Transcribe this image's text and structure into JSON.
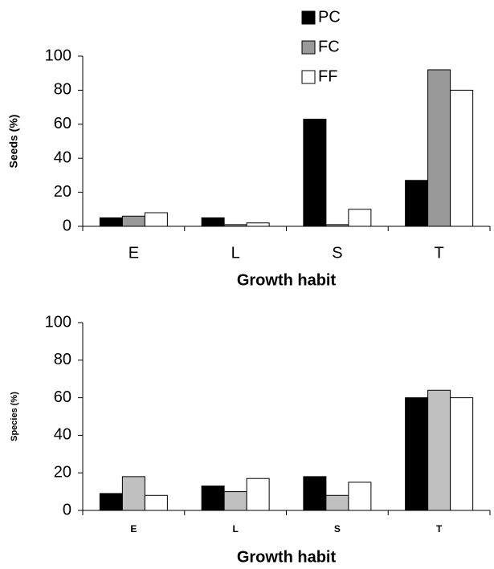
{
  "chart_data": [
    {
      "type": "bar",
      "y_label": "Seeds (%)",
      "x_label": "Growth habit",
      "categories": [
        "E",
        "L",
        "S",
        "T"
      ],
      "series": [
        {
          "name": "PC",
          "color": "#000000",
          "values": [
            5,
            5,
            63,
            27
          ]
        },
        {
          "name": "FC",
          "color": "#999999",
          "values": [
            6,
            1,
            1,
            92
          ]
        },
        {
          "name": "FF",
          "color": "#ffffff",
          "values": [
            8,
            2,
            10,
            80
          ]
        }
      ],
      "ylim": [
        0,
        100
      ],
      "yticks": [
        0,
        20,
        40,
        60,
        80,
        100
      ],
      "legend": "top-right"
    },
    {
      "type": "bar",
      "y_label": "Species (%)",
      "x_label": "Growth habit",
      "categories": [
        "E",
        "L",
        "S",
        "T"
      ],
      "series": [
        {
          "color": "#000000",
          "values": [
            9,
            13,
            18,
            60
          ]
        },
        {
          "color": "#c0c0c0",
          "values": [
            18,
            10,
            8,
            64
          ]
        },
        {
          "color": "#ffffff",
          "values": [
            8,
            17,
            15,
            60
          ]
        }
      ],
      "ylim": [
        0,
        100
      ],
      "yticks": [
        0,
        20,
        40,
        60,
        80,
        100
      ]
    }
  ]
}
